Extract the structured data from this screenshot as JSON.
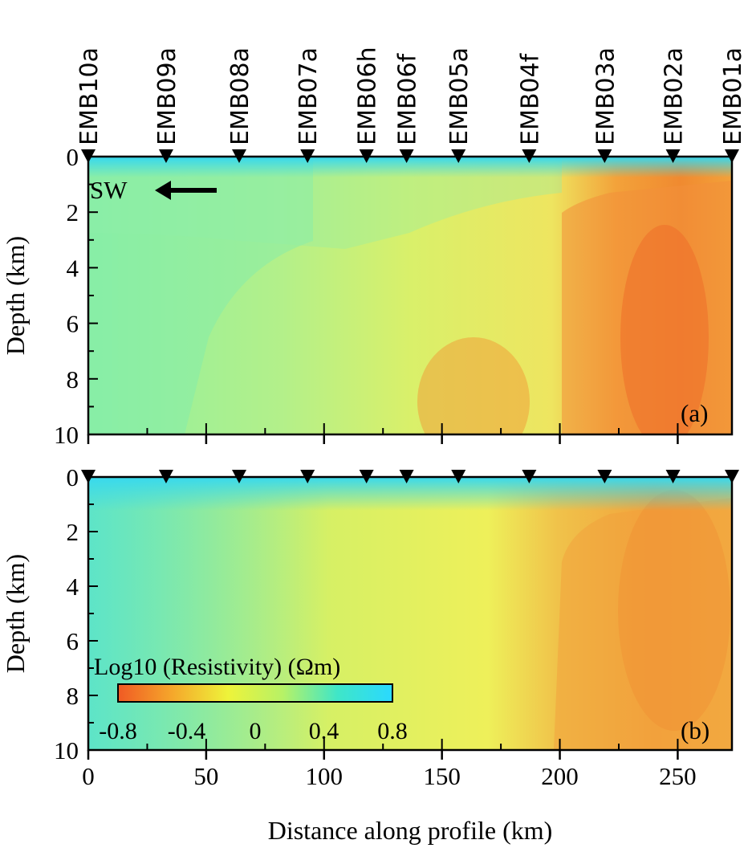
{
  "chart_data": [
    {
      "panel": "(a)",
      "type": "heatmap",
      "stations": [
        {
          "name": "EMB10a",
          "x": 0
        },
        {
          "name": "EMB09a",
          "x": 33
        },
        {
          "name": "EMB08a",
          "x": 64
        },
        {
          "name": "EMB07a",
          "x": 93
        },
        {
          "name": "EMB06h",
          "x": 118
        },
        {
          "name": "EMB06f",
          "x": 135
        },
        {
          "name": "EMB05a",
          "x": 157
        },
        {
          "name": "EMB04f",
          "x": 187
        },
        {
          "name": "EMB03a",
          "x": 219
        },
        {
          "name": "EMB02a",
          "x": 248
        },
        {
          "name": "EMB01a",
          "x": 273
        }
      ],
      "direction_label": "SW",
      "ylabel": "Depth (km)",
      "xlim": [
        0,
        273
      ],
      "ylim": [
        0,
        10
      ],
      "yticks": [
        "0",
        "2",
        "4",
        "6",
        "8",
        "10"
      ],
      "xticks": [
        0,
        50,
        100,
        150,
        200,
        250
      ]
    },
    {
      "panel": "(b)",
      "type": "heatmap",
      "stations": [
        0,
        33,
        64,
        93,
        118,
        135,
        157,
        187,
        219,
        248,
        273
      ],
      "ylabel": "Depth (km)",
      "xlabel": "Distance along profile (km)",
      "xlim": [
        0,
        273
      ],
      "ylim": [
        0,
        10
      ],
      "yticks": [
        "0",
        "2",
        "4",
        "6",
        "8",
        "10"
      ],
      "xticks": [
        "0",
        "50",
        "100",
        "150",
        "200",
        "250"
      ]
    }
  ],
  "colorbar": {
    "title": "Log10 (Resistivity) (Ωm)",
    "ticks": [
      "-0.8",
      "-0.4",
      "0",
      "0.4",
      "0.8"
    ],
    "range": [
      -0.8,
      0.8
    ],
    "colors": [
      "#f05a24",
      "#f5a82b",
      "#eef33a",
      "#b7f266",
      "#3fe6c8",
      "#2ad9ff"
    ]
  }
}
